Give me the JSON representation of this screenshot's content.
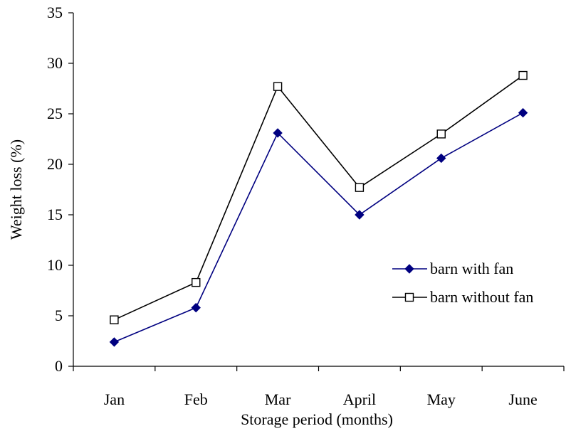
{
  "chart_data": {
    "type": "line",
    "categories": [
      "Jan",
      "Feb",
      "Mar",
      "April",
      "May",
      "June"
    ],
    "series": [
      {
        "name": "barn with fan",
        "values": [
          2.4,
          5.8,
          23.1,
          15.0,
          20.6,
          25.1
        ],
        "color": "#000080",
        "marker": "filled-diamond"
      },
      {
        "name": "barn without fan",
        "values": [
          4.6,
          8.3,
          27.7,
          17.7,
          23.0,
          28.8
        ],
        "color": "#000000",
        "marker": "open-square"
      }
    ],
    "xlabel": "Storage period (months)",
    "ylabel": "Weight loss (%)",
    "ylim": [
      0,
      35
    ],
    "yticks": [
      0,
      5,
      10,
      15,
      20,
      25,
      30,
      35
    ],
    "grid": false,
    "legend_position": "right"
  }
}
